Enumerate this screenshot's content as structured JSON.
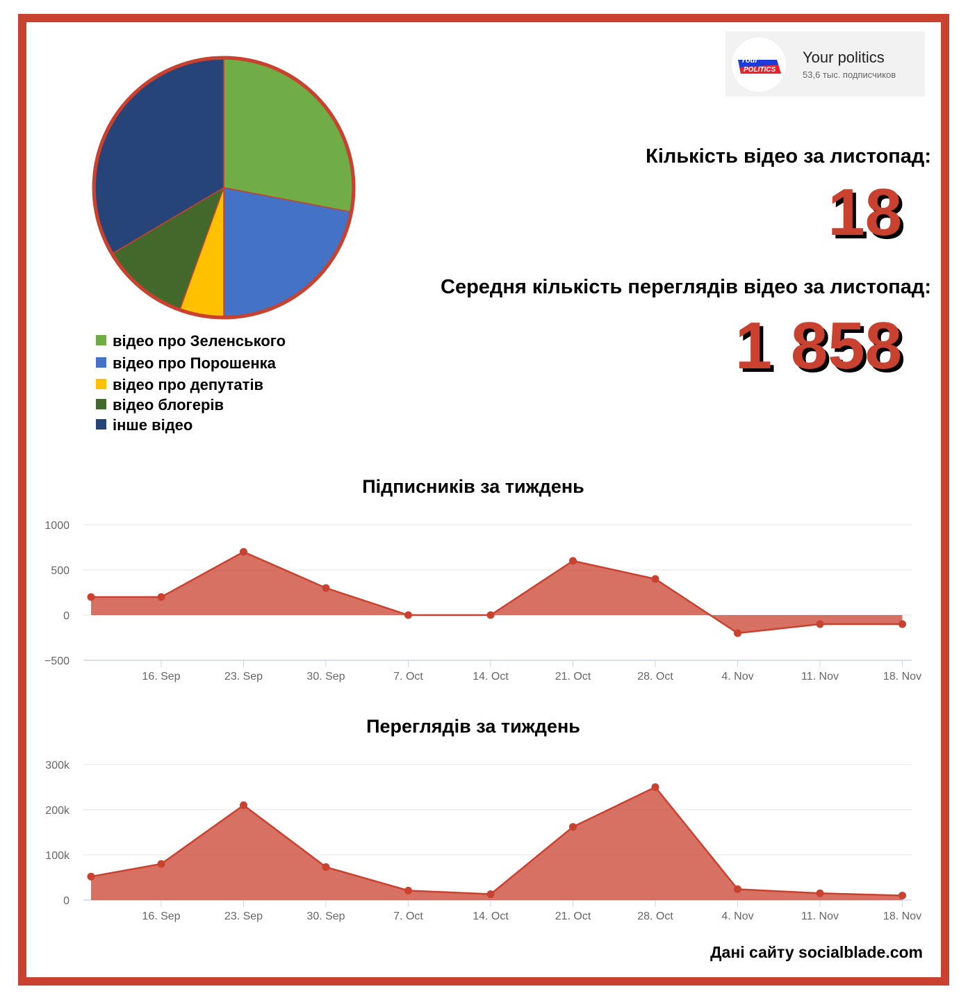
{
  "channel": {
    "logo_top": "Your",
    "logo_bottom": "POLITICS",
    "name": "Your politics",
    "subscribers": "53,6 тыс. подписчиков"
  },
  "stats": [
    {
      "label": "Кількість відео за листопад:",
      "value": "18"
    },
    {
      "label": "Середня кількість переглядів відео за листопад:",
      "value": "1 858"
    }
  ],
  "source": "Дані сайту socialblade.com",
  "chart_data": [
    {
      "type": "pie",
      "categories": [
        "відео про Зеленського",
        "відео про Порошенка",
        "відео про депутатів",
        "відео блогерів",
        "інше відео"
      ],
      "values": [
        28,
        22,
        5.5,
        11,
        33.5
      ],
      "colors": [
        "#70ad47",
        "#4472c4",
        "#ffc000",
        "#43682b",
        "#264478"
      ],
      "legend": "bottom-left"
    },
    {
      "type": "area",
      "title": "Підписників за тиждень",
      "categories": [
        null,
        "16. Sep",
        "23. Sep",
        "30. Sep",
        "7. Oct",
        "14. Oct",
        "21. Oct",
        "28. Oct",
        "4. Nov",
        "11. Nov",
        "18. Nov"
      ],
      "series": [
        {
          "color": "#c9412f",
          "values": [
            200,
            200,
            700,
            300,
            0,
            0,
            600,
            400,
            -200,
            -100,
            -100
          ]
        }
      ],
      "ylim": [
        -500,
        1000
      ],
      "yticks": [
        {
          "value": -500,
          "label": "−500"
        },
        0,
        500,
        1000
      ],
      "grid": true
    },
    {
      "type": "area",
      "title": "Переглядів за тиждень",
      "categories": [
        null,
        "16. Sep",
        "23. Sep",
        "30. Sep",
        "7. Oct",
        "14. Oct",
        "21. Oct",
        "28. Oct",
        "4. Nov",
        "11. Nov",
        "18. Nov"
      ],
      "series": [
        {
          "color": "#c9412f",
          "values": [
            52000,
            80000,
            210000,
            73000,
            21000,
            13000,
            162000,
            250000,
            24000,
            15000,
            10000
          ]
        }
      ],
      "ylim": [
        0,
        300000
      ],
      "yticks": [
        0,
        {
          "value": 100000,
          "label": "100k"
        },
        {
          "value": 200000,
          "label": "200k"
        },
        {
          "value": 300000,
          "label": "300k"
        }
      ],
      "grid": true
    }
  ]
}
